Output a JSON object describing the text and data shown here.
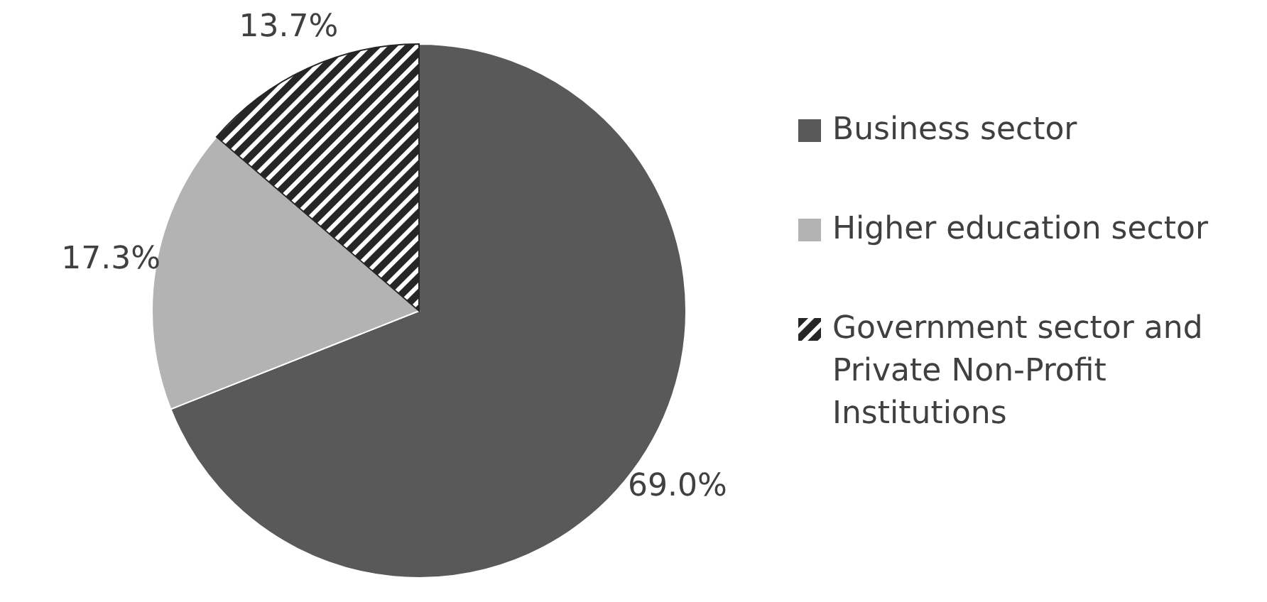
{
  "chart_data": {
    "type": "pie",
    "categories": [
      "Business sector",
      "Higher education sector",
      "Government sector and Private Non-Profit Institutions"
    ],
    "values": [
      69.0,
      17.3,
      13.7
    ],
    "colors": [
      "#595959",
      "#b3b3b3",
      "#262626"
    ],
    "value_labels": [
      "69.0%",
      "17.3%",
      "13.7%"
    ],
    "legend": "right"
  }
}
